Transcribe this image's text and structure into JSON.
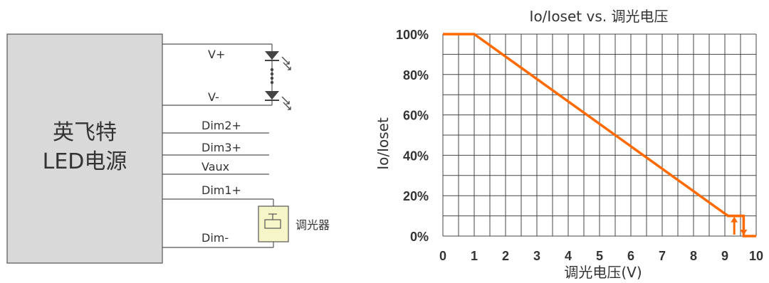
{
  "diagram": {
    "driver": {
      "line1": "英飞特",
      "line2": "LED电源"
    },
    "terminals": [
      "V+",
      "V-",
      "Dim2+",
      "Dim3+",
      "Vaux",
      "Dim1+",
      "Dim-"
    ],
    "dimmer_label": "调光器",
    "colors": {
      "box_fill": "#d9d9d9",
      "dimmer_fill": "#f5f5c8",
      "led": "#444444"
    }
  },
  "chart_data": {
    "type": "line",
    "title": "Io/Ioset vs. 调光电压",
    "xlabel": "调光电压(V)",
    "ylabel": "Io/Ioset",
    "xlim": [
      0,
      10
    ],
    "ylim": [
      0,
      100
    ],
    "x_ticks": [
      "0",
      "1",
      "2",
      "3",
      "4",
      "5",
      "6",
      "7",
      "8",
      "9",
      "10"
    ],
    "y_ticks": [
      "0%",
      "20%",
      "40%",
      "60%",
      "80%",
      "100%"
    ],
    "series": [
      {
        "x": [
          0,
          1,
          9.1,
          9.6,
          9.6,
          10
        ],
        "y": [
          100,
          100,
          10,
          10,
          0,
          0
        ]
      }
    ],
    "hysteresis": {
      "x_low": 9.3,
      "x_high": 9.6,
      "y_low": 0,
      "y_high": 10
    },
    "line_color": "#ff6a00",
    "grid": true
  }
}
